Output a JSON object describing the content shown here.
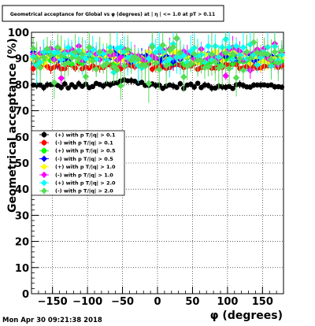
{
  "chart_data": {
    "type": "scatter",
    "title": "Geometrical acceptance for Global vs φ (degrees) at | η | <= 1.0 at pT > 0.11",
    "xlabel": "φ (degrees)",
    "ylabel": "Geometrical acceptance (%)",
    "xlim": [
      -180,
      180
    ],
    "ylim": [
      0,
      100
    ],
    "xticks": [
      "−150",
      "−100",
      "−50",
      "0",
      "50",
      "100",
      "150"
    ],
    "yticks": [
      "0",
      "10",
      "20",
      "30",
      "40",
      "50",
      "60",
      "70",
      "80",
      "90",
      "100"
    ],
    "grid": true,
    "legend_position": "left-middle",
    "series": [
      {
        "name": "(+) with p T/|q| > 0.1",
        "color": "#000000",
        "marker": "circle",
        "base": 79.5,
        "spread": 1.0,
        "bump": true,
        "error": 1.0
      },
      {
        "name": "(-) with p T/|q| > 0.1",
        "color": "#ff0000",
        "marker": "circle",
        "base": 87.0,
        "spread": 1.2,
        "bump": false,
        "error": 1.5
      },
      {
        "name": "(+) with p T/|q| > 0.5",
        "color": "#00ff00",
        "marker": "circle",
        "base": 89.5,
        "spread": 1.8,
        "bump": false,
        "error": 2.5
      },
      {
        "name": "(-) with p T/|q| > 0.5",
        "color": "#0000ff",
        "marker": "diamond",
        "base": 90.5,
        "spread": 2.0,
        "bump": false,
        "error": 2.5
      },
      {
        "name": "(+) with p T/|q| > 1.0",
        "color": "#ffff00",
        "marker": "diamond",
        "base": 90.5,
        "spread": 2.5,
        "bump": false,
        "error": 3.0
      },
      {
        "name": "(-) with p T/|q| > 1.0",
        "color": "#ff00ff",
        "marker": "diamond",
        "base": 91.5,
        "spread": 2.5,
        "bump": false,
        "error": 3.0
      },
      {
        "name": "(+) with p T/|q| > 2.0",
        "color": "#00ffff",
        "marker": "diamond",
        "base": 91.0,
        "spread": 4.0,
        "bump": false,
        "error": 5.0
      },
      {
        "name": "(-) with p T/|q| > 2.0",
        "color": "#55dd55",
        "marker": "diamond",
        "base": 90.0,
        "spread": 4.5,
        "bump": false,
        "error": 5.5
      }
    ]
  },
  "timestamp": "Mon Apr 30 09:21:38 2018"
}
